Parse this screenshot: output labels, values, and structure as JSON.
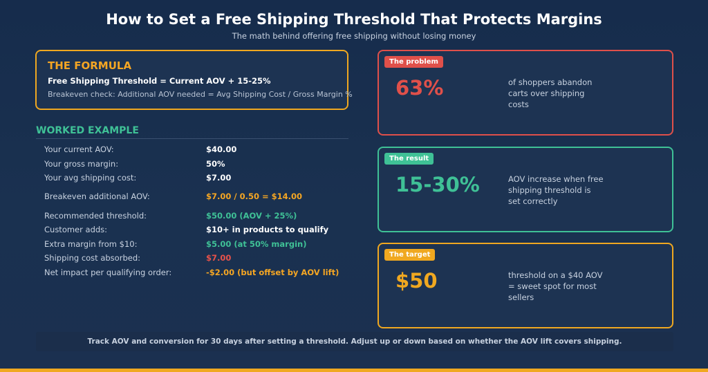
{
  "header": {
    "title": "How to Set a Free Shipping Threshold That Protects Margins",
    "subtitle": "The math behind offering free shipping without losing money"
  },
  "formula": {
    "heading": "THE FORMULA",
    "main": "Free Shipping Threshold = Current AOV + 15-25%",
    "check": "Breakeven check: Additional AOV needed = Avg Shipping Cost / Gross Margin %"
  },
  "worked": {
    "heading": "WORKED EXAMPLE",
    "rows": [
      {
        "label": "Your current AOV:",
        "value": "$40.00",
        "color": "#ffffff"
      },
      {
        "label": "Your gross margin:",
        "value": "50%",
        "color": "#ffffff"
      },
      {
        "label": "Your avg shipping cost:",
        "value": "$7.00",
        "color": "#ffffff"
      },
      {
        "label": "Breakeven additional AOV:",
        "value": "$7.00 / 0.50 = $14.00",
        "color": "#f5a623"
      },
      {
        "label": "Recommended threshold:",
        "value": "$50.00 (AOV + 25%)",
        "color": "#3fc196"
      },
      {
        "label": "Customer adds:",
        "value": "$10+ in products to qualify",
        "color": "#ffffff"
      },
      {
        "label": "Extra margin from $10:",
        "value": "$5.00 (at 50% margin)",
        "color": "#3fc196"
      },
      {
        "label": "Shipping cost absorbed:",
        "value": "$7.00",
        "color": "#e8524a"
      },
      {
        "label": "Net impact per qualifying order:",
        "value": "-$2.00 (but offset by AOV lift)",
        "color": "#f5a623"
      }
    ]
  },
  "cards": [
    {
      "badge": "The problem",
      "stat": "63%",
      "desc": "of shoppers abandon carts over shipping costs",
      "color": "#e0504a"
    },
    {
      "badge": "The result",
      "stat": "15-30%",
      "desc": "AOV increase when free shipping threshold is set correctly",
      "color": "#3fc196"
    },
    {
      "badge": "The target",
      "stat": "$50",
      "desc": "threshold on a $40 AOV = sweet spot for most sellers",
      "color": "#f0a820"
    }
  ],
  "footer": {
    "text": "Track AOV and conversion for 30 days after setting a threshold. Adjust up or down based on whether the AOV lift covers shipping."
  }
}
